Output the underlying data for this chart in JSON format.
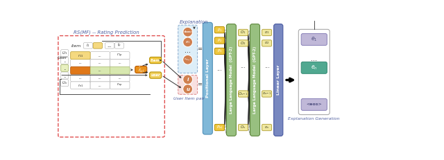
{
  "title": "Explanation",
  "rs_title": "RS(MF) -- Rating Prediction",
  "user_item_pair_label": "User Item pair",
  "explanation_gen_label": "Explanation Generation",
  "highlight_item_col": "#f5d980",
  "highlight_user_row": "#e8f0c0",
  "highlight_cell": "#e07818",
  "orange_box": "#e8901a",
  "yellow_box": "#f0c840",
  "light_yellow_box": "#f0d060",
  "salmon_circle": "#d08050",
  "positional_layer_color": "#80b8d8",
  "gpt_layer_color": "#98c080",
  "linear_layer_color": "#7888c0",
  "output_box_lavender": "#c0b8d8",
  "output_box_teal": "#50a890",
  "dashed_border_red": "#e05050",
  "arrow_color": "#303030",
  "text_color": "#303030",
  "label_color": "#5060a0",
  "white": "#ffffff"
}
